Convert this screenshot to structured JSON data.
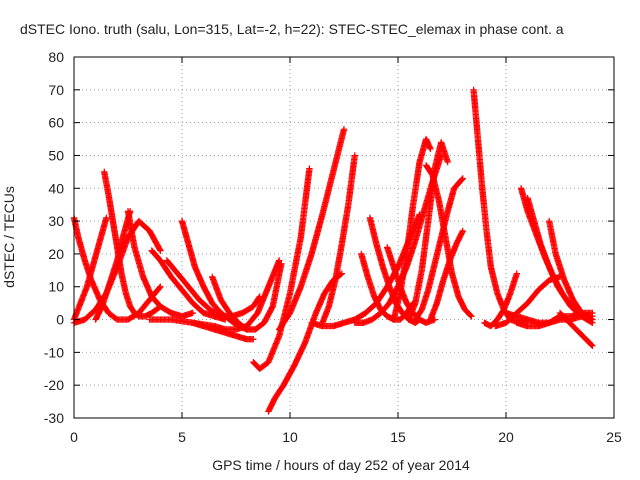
{
  "chart_data": {
    "type": "scatter",
    "title": "dSTEC Iono. truth (salu, Lon=315, Lat=-2, h=22): STEC-STEC_elemax in phase cont. a",
    "xlabel": "GPS time / hours of day 252 of year 2014",
    "ylabel": "dSTEC  / TECUs",
    "xlim": [
      0,
      25
    ],
    "ylim": [
      -30,
      80
    ],
    "x_ticks": [
      "0",
      "5",
      "10",
      "15",
      "20",
      "25"
    ],
    "y_ticks": [
      "-30",
      "-20",
      "-10",
      "0",
      "10",
      "20",
      "30",
      "40",
      "50",
      "60",
      "70",
      "80"
    ],
    "grid": true,
    "legend": "none",
    "marker": "plus",
    "color": "#ff0000",
    "series": [
      {
        "x": [
          0.0,
          0.2,
          0.5,
          0.8,
          1.2,
          1.6,
          2.0,
          2.5,
          3.0,
          3.5,
          4.0
        ],
        "y": [
          31,
          25,
          18,
          12,
          6,
          2,
          0,
          0,
          2,
          6,
          10
        ]
      },
      {
        "x": [
          0.0,
          0.3,
          0.6,
          0.9,
          1.2,
          1.5
        ],
        "y": [
          0,
          5,
          10,
          17,
          24,
          31
        ]
      },
      {
        "x": [
          0.0,
          0.5,
          1.0,
          1.5,
          2.0,
          2.5,
          3.0,
          3.5,
          4.0
        ],
        "y": [
          -1,
          0,
          3,
          8,
          16,
          25,
          30,
          27,
          21
        ]
      },
      {
        "x": [
          1.4,
          1.6,
          1.8,
          2.0,
          2.2,
          2.4,
          2.6,
          2.8,
          3.0,
          3.3,
          3.6,
          4.0
        ],
        "y": [
          45,
          38,
          30,
          22,
          14,
          8,
          4,
          2,
          1,
          1,
          2,
          4
        ]
      },
      {
        "x": [
          1.0,
          1.3,
          1.6,
          2.0,
          2.3,
          2.6
        ],
        "y": [
          0,
          4,
          10,
          18,
          26,
          33
        ]
      },
      {
        "x": [
          2.5,
          2.8,
          3.2,
          3.6,
          4.0,
          4.5,
          5.0,
          5.5
        ],
        "y": [
          33,
          22,
          13,
          7,
          4,
          2,
          1,
          2
        ]
      },
      {
        "x": [
          3.6,
          4.0,
          4.5,
          5.0,
          5.5,
          6.0,
          6.5,
          7.0
        ],
        "y": [
          21,
          18,
          13,
          9,
          5,
          2,
          1,
          0
        ]
      },
      {
        "x": [
          4.3,
          4.8,
          5.3,
          5.8,
          6.3,
          6.8,
          7.3,
          7.8,
          8.3,
          8.6
        ],
        "y": [
          18,
          14,
          10,
          6,
          3,
          1,
          1,
          2,
          4,
          7
        ]
      },
      {
        "x": [
          5.0,
          5.3,
          5.6,
          6.0,
          6.4,
          6.8,
          7.2,
          7.6,
          8.0
        ],
        "y": [
          30,
          23,
          16,
          10,
          5,
          2,
          0,
          -2,
          -3
        ]
      },
      {
        "x": [
          3.5,
          4.5,
          5.5,
          6.5,
          7.0,
          7.5,
          8.0,
          8.5,
          9.0,
          9.5
        ],
        "y": [
          0,
          0,
          -1,
          -2,
          -3,
          -3,
          -2,
          2,
          10,
          18
        ]
      },
      {
        "x": [
          6.4,
          6.8,
          7.2,
          7.6,
          8.0,
          8.4,
          8.8,
          9.2,
          9.6
        ],
        "y": [
          13,
          6,
          2,
          -1,
          -3,
          -3,
          -1,
          4,
          17
        ]
      },
      {
        "x": [
          5.5,
          6.0,
          6.5,
          7.0,
          7.5,
          8.0,
          8.3
        ],
        "y": [
          -1,
          -2,
          -3,
          -4,
          -5,
          -6,
          -6
        ]
      },
      {
        "x": [
          8.3,
          8.6,
          9.0,
          9.5,
          10.0,
          10.5,
          10.9
        ],
        "y": [
          -13,
          -15,
          -13,
          -5,
          8,
          25,
          46
        ]
      },
      {
        "x": [
          9.0,
          9.3,
          9.7,
          10.2,
          10.7,
          11.2,
          11.6,
          12.0,
          12.4
        ],
        "y": [
          -28,
          -24,
          -20,
          -14,
          -7,
          2,
          8,
          12,
          14
        ]
      },
      {
        "x": [
          11.0,
          11.5,
          12.0,
          12.5,
          13.0,
          13.5,
          14.0,
          14.5,
          15.0,
          15.5,
          16.0
        ],
        "y": [
          -1,
          -2,
          -2,
          -1,
          0,
          2,
          5,
          10,
          16,
          24,
          32
        ]
      },
      {
        "x": [
          9.5,
          10.0,
          10.5,
          11.0,
          11.5,
          12.0,
          12.5
        ],
        "y": [
          -3,
          2,
          10,
          20,
          32,
          45,
          58
        ]
      },
      {
        "x": [
          11.5,
          11.8,
          12.1,
          12.4,
          12.7,
          13.0
        ],
        "y": [
          -1,
          4,
          12,
          23,
          35,
          50
        ]
      },
      {
        "x": [
          13.3,
          13.6,
          13.9,
          14.2,
          14.5,
          14.8,
          15.1,
          15.4,
          15.7
        ],
        "y": [
          20,
          13,
          7,
          3,
          1,
          0,
          0,
          2,
          5
        ]
      },
      {
        "x": [
          13.7,
          14.0,
          14.3,
          14.6,
          14.9,
          15.2,
          15.5,
          15.8,
          16.0
        ],
        "y": [
          31,
          23,
          16,
          10,
          5,
          2,
          0,
          -1,
          0
        ]
      },
      {
        "x": [
          14.5,
          14.8,
          15.1,
          15.4,
          15.7,
          16.0,
          16.3,
          16.7
        ],
        "y": [
          22,
          16,
          10,
          5,
          2,
          0,
          -1,
          0
        ]
      },
      {
        "x": [
          13.0,
          13.4,
          13.8,
          14.2,
          14.6,
          15.0,
          15.4,
          15.8,
          16.2,
          16.6,
          17.0
        ],
        "y": [
          -1,
          -1,
          0,
          2,
          5,
          10,
          16,
          24,
          33,
          42,
          50
        ]
      },
      {
        "x": [
          14.8,
          15.1,
          15.4,
          15.7,
          16.0,
          16.3,
          16.5
        ],
        "y": [
          0,
          8,
          20,
          35,
          48,
          55,
          52
        ]
      },
      {
        "x": [
          15.5,
          15.8,
          16.1,
          16.4,
          16.7,
          17.0,
          17.3
        ],
        "y": [
          0,
          5,
          15,
          30,
          46,
          54,
          48
        ]
      },
      {
        "x": [
          16.3,
          16.6,
          16.9,
          17.2,
          17.5,
          17.8,
          18.1,
          18.4
        ],
        "y": [
          47,
          44,
          36,
          25,
          14,
          7,
          3,
          1
        ]
      },
      {
        "x": [
          15.8,
          16.1,
          16.4,
          16.7,
          17.0,
          17.3,
          17.6,
          18.0
        ],
        "y": [
          0,
          3,
          9,
          17,
          25,
          33,
          40,
          43
        ]
      },
      {
        "x": [
          16.5,
          16.8,
          17.1,
          17.4,
          17.7,
          18.0
        ],
        "y": [
          0,
          5,
          12,
          18,
          23,
          27
        ]
      },
      {
        "x": [
          18.5,
          18.7,
          18.9,
          19.1,
          19.3,
          19.6,
          19.9,
          20.2,
          20.6,
          21.0
        ],
        "y": [
          70,
          55,
          40,
          27,
          16,
          8,
          3,
          0,
          -1,
          0
        ]
      },
      {
        "x": [
          19.0,
          19.3,
          19.6,
          19.9,
          20.2,
          20.5
        ],
        "y": [
          -1,
          -2,
          0,
          3,
          8,
          14
        ]
      },
      {
        "x": [
          19.5,
          20.0,
          20.5,
          21.0,
          21.5,
          22.0,
          22.5
        ],
        "y": [
          -2,
          -1,
          2,
          5,
          9,
          12,
          13
        ]
      },
      {
        "x": [
          20.7,
          21.0,
          21.4,
          21.8,
          22.2,
          22.6,
          23.0,
          23.5,
          24.0
        ],
        "y": [
          40,
          33,
          26,
          19,
          13,
          8,
          4,
          1,
          -1
        ]
      },
      {
        "x": [
          21.0,
          21.3,
          21.6,
          22.0,
          22.4,
          22.8,
          23.2,
          23.6,
          24.0
        ],
        "y": [
          37,
          30,
          23,
          16,
          10,
          6,
          3,
          1,
          0
        ]
      },
      {
        "x": [
          22.0,
          22.3,
          22.7,
          23.1,
          23.5,
          24.0
        ],
        "y": [
          30,
          20,
          12,
          6,
          2,
          0
        ]
      },
      {
        "x": [
          20.0,
          20.5,
          21.0,
          21.5,
          22.0,
          22.5,
          23.0,
          23.5,
          24.0
        ],
        "y": [
          2,
          1,
          0,
          -1,
          -1,
          0,
          0,
          1,
          1
        ]
      },
      {
        "x": [
          20.5,
          21.0,
          21.5,
          22.0,
          22.5,
          23.0,
          23.5,
          24.0
        ],
        "y": [
          -1,
          -2,
          -2,
          -1,
          1,
          1,
          2,
          2
        ]
      },
      {
        "x": [
          22.5,
          22.8,
          23.1,
          23.4,
          23.7,
          24.0
        ],
        "y": [
          2,
          0,
          -2,
          -4,
          -6,
          -8
        ]
      }
    ]
  }
}
